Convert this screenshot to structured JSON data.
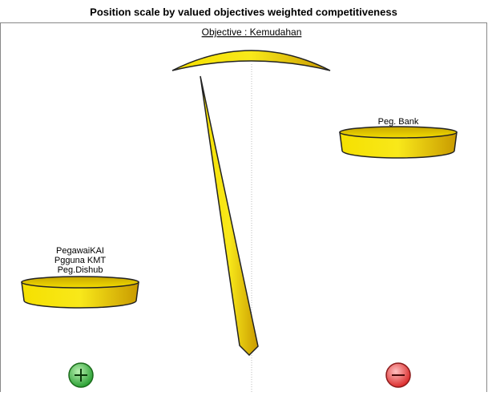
{
  "title": "Position scale by valued objectives weighted competitiveness",
  "objective": "Objective : Kemudahan",
  "left_pan": {
    "labels": [
      "PegawaiKAI",
      "Pgguna KMT",
      "Peg.Dishub"
    ]
  },
  "right_pan": {
    "labels": [
      "Peg. Bank"
    ]
  }
}
